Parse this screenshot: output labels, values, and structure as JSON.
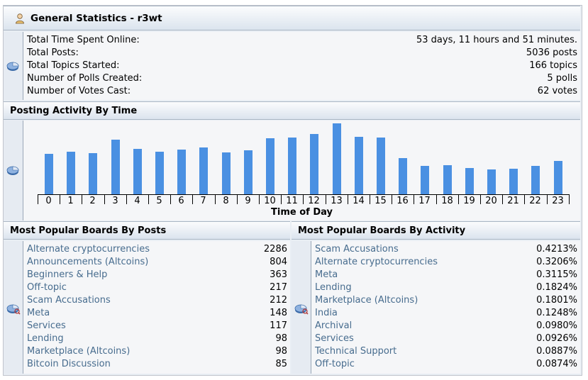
{
  "general": {
    "title": "General Statistics - r3wt",
    "rows": [
      {
        "label": "Total Time Spent Online:",
        "value": "53 days, 11 hours and 51 minutes."
      },
      {
        "label": "Total Posts:",
        "value": "5036 posts"
      },
      {
        "label": "Total Topics Started:",
        "value": "166 topics"
      },
      {
        "label": "Number of Polls Created:",
        "value": "5 polls"
      },
      {
        "label": "Number of Votes Cast:",
        "value": "62 votes"
      }
    ]
  },
  "activity": {
    "title": "Posting Activity By Time",
    "xlabel": "Time of Day"
  },
  "chart_data": {
    "type": "bar",
    "title": "Posting Activity By Time",
    "xlabel": "Time of Day",
    "ylabel": "",
    "categories": [
      "0",
      "1",
      "2",
      "3",
      "4",
      "5",
      "6",
      "7",
      "8",
      "9",
      "10",
      "11",
      "12",
      "13",
      "14",
      "15",
      "16",
      "17",
      "18",
      "19",
      "20",
      "21",
      "22",
      "23"
    ],
    "values": [
      57,
      60,
      58,
      77,
      64,
      60,
      63,
      66,
      59,
      62,
      79,
      80,
      85,
      100,
      81,
      80,
      51,
      40,
      41,
      37,
      35,
      36,
      40,
      47
    ],
    "ylim": [
      0,
      100
    ],
    "color": "#4a90e2",
    "grid": false
  },
  "boards_posts": {
    "title": "Most Popular Boards By Posts",
    "rows": [
      {
        "label": "Alternate cryptocurrencies",
        "value": "2286"
      },
      {
        "label": "Announcements (Altcoins)",
        "value": "804"
      },
      {
        "label": "Beginners & Help",
        "value": "363"
      },
      {
        "label": "Off-topic",
        "value": "217"
      },
      {
        "label": "Scam Accusations",
        "value": "212"
      },
      {
        "label": "Meta",
        "value": "148"
      },
      {
        "label": "Services",
        "value": "117"
      },
      {
        "label": "Lending",
        "value": "98"
      },
      {
        "label": "Marketplace (Altcoins)",
        "value": "98"
      },
      {
        "label": "Bitcoin Discussion",
        "value": "85"
      }
    ]
  },
  "boards_activity": {
    "title": "Most Popular Boards By Activity",
    "rows": [
      {
        "label": "Scam Accusations",
        "value": "0.4213%"
      },
      {
        "label": "Alternate cryptocurrencies",
        "value": "0.3206%"
      },
      {
        "label": "Meta",
        "value": "0.3115%"
      },
      {
        "label": "Lending",
        "value": "0.1824%"
      },
      {
        "label": "Marketplace (Altcoins)",
        "value": "0.1801%"
      },
      {
        "label": "India",
        "value": "0.1248%"
      },
      {
        "label": "Archival",
        "value": "0.0980%"
      },
      {
        "label": "Services",
        "value": "0.0926%"
      },
      {
        "label": "Technical Support",
        "value": "0.0887%"
      },
      {
        "label": "Off-topic",
        "value": "0.0874%"
      }
    ]
  },
  "icons": {
    "general": "user-icon",
    "stats": "pie-chart-icon",
    "posts": "pie-chart-icon",
    "activity": "pie-chart-icon"
  },
  "colors": {
    "bar": "#4a90e2",
    "link": "#476c8e",
    "header_bg": "#dbe4ee"
  }
}
